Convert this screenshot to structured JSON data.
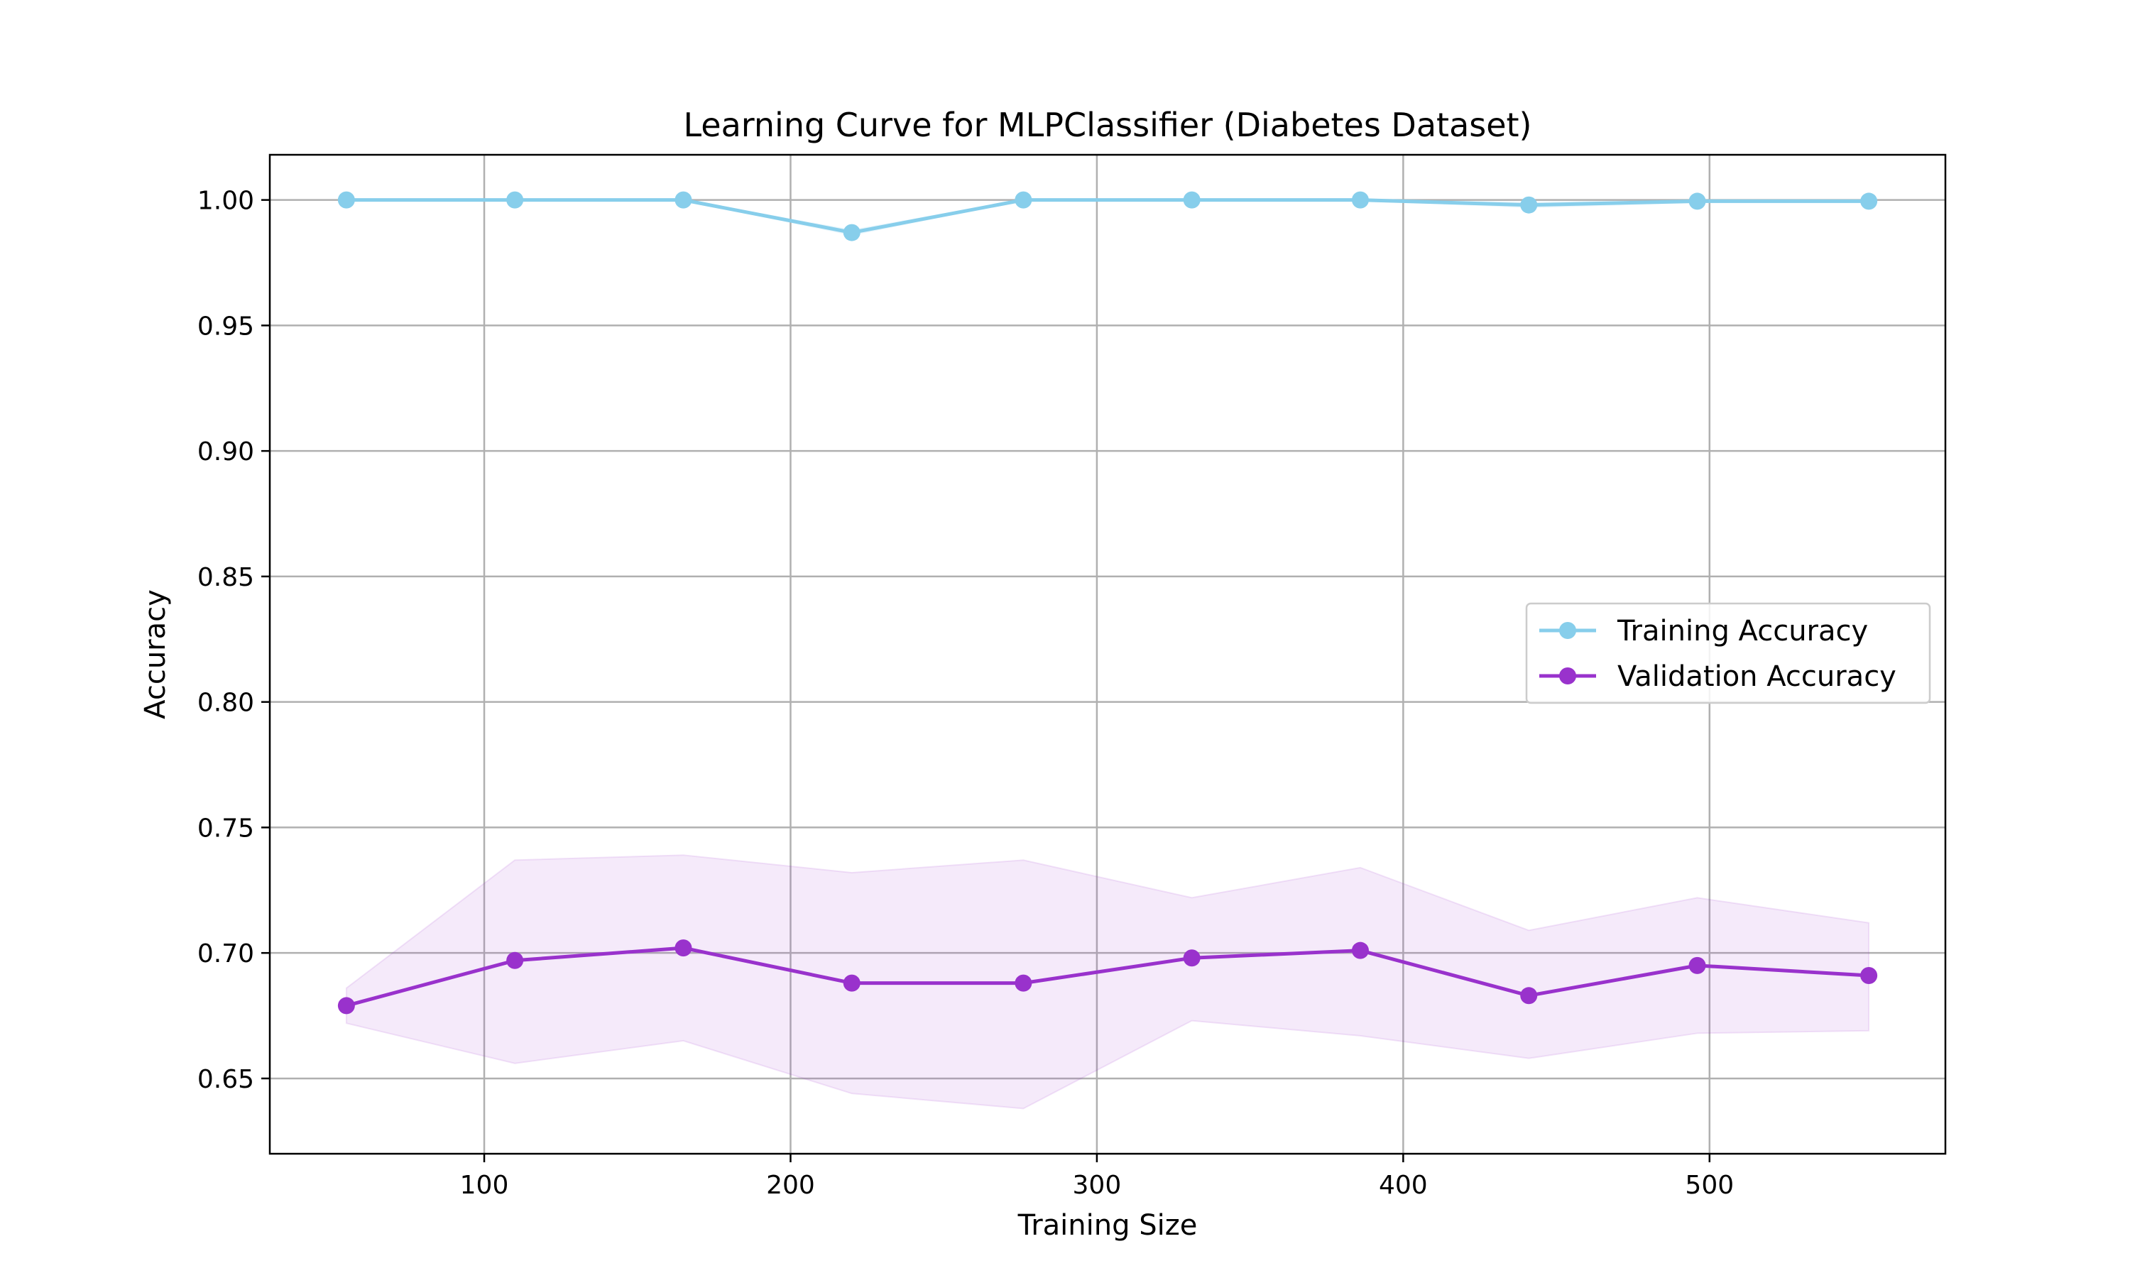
{
  "chart_data": {
    "type": "line",
    "title": "Learning Curve for MLPClassifier (Diabetes Dataset)",
    "xlabel": "Training Size",
    "ylabel": "Accuracy",
    "xlim": [
      30,
      577
    ],
    "ylim": [
      0.62,
      1.018
    ],
    "xticks": [
      100,
      200,
      300,
      400,
      500
    ],
    "yticks": [
      0.65,
      0.7,
      0.75,
      0.8,
      0.85,
      0.9,
      0.95,
      1.0
    ],
    "grid": true,
    "legend_position": "center-right",
    "x": [
      55,
      110,
      165,
      220,
      276,
      331,
      386,
      441,
      496,
      552
    ],
    "series": [
      {
        "name": "Training Accuracy",
        "color": "#87CEEB",
        "marker": "circle",
        "values": [
          1.0,
          1.0,
          1.0,
          0.987,
          1.0,
          1.0,
          1.0,
          0.998,
          0.9995,
          0.9995
        ],
        "band_lower": [
          1.0,
          1.0,
          1.0,
          0.986,
          1.0,
          1.0,
          1.0,
          0.997,
          0.999,
          0.999
        ],
        "band_upper": [
          1.0,
          1.0,
          1.0,
          0.988,
          1.0,
          1.0,
          1.0,
          0.999,
          1.0,
          1.0
        ]
      },
      {
        "name": "Validation Accuracy",
        "color": "#9932CC",
        "marker": "circle",
        "values": [
          0.679,
          0.697,
          0.702,
          0.688,
          0.688,
          0.698,
          0.701,
          0.683,
          0.695,
          0.691
        ],
        "band_lower": [
          0.672,
          0.656,
          0.665,
          0.644,
          0.638,
          0.673,
          0.667,
          0.658,
          0.668,
          0.669
        ],
        "band_upper": [
          0.686,
          0.737,
          0.739,
          0.732,
          0.737,
          0.722,
          0.734,
          0.709,
          0.722,
          0.712
        ]
      }
    ]
  }
}
